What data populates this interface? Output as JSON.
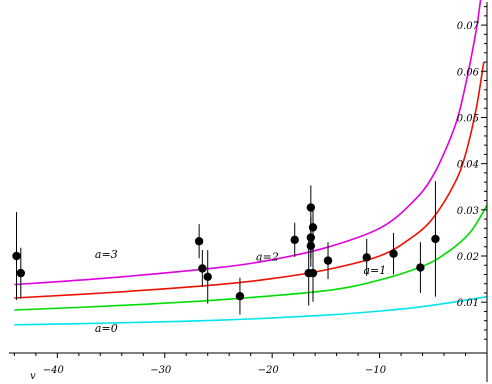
{
  "chart_data": {
    "type": "scatter",
    "xlim": [
      -44.5,
      0
    ],
    "ylim": [
      -0.001,
      0.075
    ],
    "x_axis_label": "v",
    "x_ticks": [
      {
        "value": -40,
        "label": "−40"
      },
      {
        "value": -30,
        "label": "−30"
      },
      {
        "value": -20,
        "label": "−20"
      },
      {
        "value": -10,
        "label": "−10"
      }
    ],
    "y_ticks": [
      {
        "value": 0.01,
        "label": "0.01"
      },
      {
        "value": 0.02,
        "label": "0.02"
      },
      {
        "value": 0.03,
        "label": "0.03"
      },
      {
        "value": 0.04,
        "label": "0.04"
      },
      {
        "value": 0.05,
        "label": "0.05"
      },
      {
        "value": 0.06,
        "label": "0.06"
      },
      {
        "value": 0.07,
        "label": "0.07"
      }
    ],
    "curves": [
      {
        "label": "a=0",
        "color": "#00e5ee",
        "label_at": [
          -36.5,
          0.0035
        ],
        "points": [
          [
            -44,
            0.0051
          ],
          [
            -35,
            0.0055
          ],
          [
            -25,
            0.0061
          ],
          [
            -15,
            0.0072
          ],
          [
            -8,
            0.0085
          ],
          [
            -4,
            0.0097
          ],
          [
            0,
            0.0112
          ]
        ]
      },
      {
        "label": "a=1",
        "color": "#00dd00",
        "label_at": [
          -11.5,
          0.0161
        ],
        "points": [
          [
            -44,
            0.0083
          ],
          [
            -35,
            0.0092
          ],
          [
            -25,
            0.0105
          ],
          [
            -15,
            0.0125
          ],
          [
            -10,
            0.0148
          ],
          [
            -6,
            0.0178
          ],
          [
            -4,
            0.0203
          ],
          [
            -2,
            0.024
          ],
          [
            -1,
            0.027
          ],
          [
            0,
            0.031
          ]
        ]
      },
      {
        "label": "a=2",
        "color": "#ee1100",
        "label_at": [
          -21.5,
          0.019
        ],
        "points": [
          [
            -44,
            0.0109
          ],
          [
            -35,
            0.0121
          ],
          [
            -25,
            0.0138
          ],
          [
            -20,
            0.0151
          ],
          [
            -15,
            0.017
          ],
          [
            -10,
            0.02
          ],
          [
            -7,
            0.024
          ],
          [
            -5,
            0.0283
          ],
          [
            -3,
            0.0358
          ],
          [
            -2,
            0.042
          ],
          [
            -1,
            0.052
          ],
          [
            -0.3,
            0.062
          ]
        ]
      },
      {
        "label": "a=3",
        "color": "#e000e0",
        "label_at": [
          -36.5,
          0.0196
        ],
        "points": [
          [
            -44,
            0.0138
          ],
          [
            -35,
            0.0153
          ],
          [
            -25,
            0.0175
          ],
          [
            -20,
            0.0192
          ],
          [
            -15,
            0.0218
          ],
          [
            -10,
            0.026
          ],
          [
            -7,
            0.0315
          ],
          [
            -5,
            0.0375
          ],
          [
            -3,
            0.048
          ],
          [
            -2,
            0.057
          ],
          [
            -1,
            0.069
          ],
          [
            -0.6,
            0.0755
          ]
        ]
      }
    ],
    "points": [
      {
        "x": -43.8,
        "y": 0.02,
        "err": 0.0095
      },
      {
        "x": -43.4,
        "y": 0.0163,
        "err": 0.0055
      },
      {
        "x": -26.8,
        "y": 0.0232,
        "err": 0.0037
      },
      {
        "x": -26.5,
        "y": 0.0173,
        "err": 0.004
      },
      {
        "x": -26.0,
        "y": 0.0155,
        "err": 0.0058
      },
      {
        "x": -23.0,
        "y": 0.0113,
        "err": 0.004
      },
      {
        "x": -17.9,
        "y": 0.0235,
        "err": 0.0037
      },
      {
        "x": -16.6,
        "y": 0.0163,
        "err": 0.007
      },
      {
        "x": -16.4,
        "y": 0.0305,
        "err": 0.0048
      },
      {
        "x": -16.4,
        "y": 0.024,
        "err": 0.0045
      },
      {
        "x": -16.4,
        "y": 0.0222,
        "err": 0.0045
      },
      {
        "x": -16.2,
        "y": 0.0163,
        "err": 0.0062
      },
      {
        "x": -16.2,
        "y": 0.0262,
        "err": 0.005
      },
      {
        "x": -14.8,
        "y": 0.019,
        "err": 0.004
      },
      {
        "x": -11.2,
        "y": 0.0197,
        "err": 0.004
      },
      {
        "x": -8.7,
        "y": 0.0205,
        "err": 0.0045
      },
      {
        "x": -6.2,
        "y": 0.0175,
        "err": 0.0055
      },
      {
        "x": -4.8,
        "y": 0.0237,
        "err": 0.0125
      }
    ]
  }
}
